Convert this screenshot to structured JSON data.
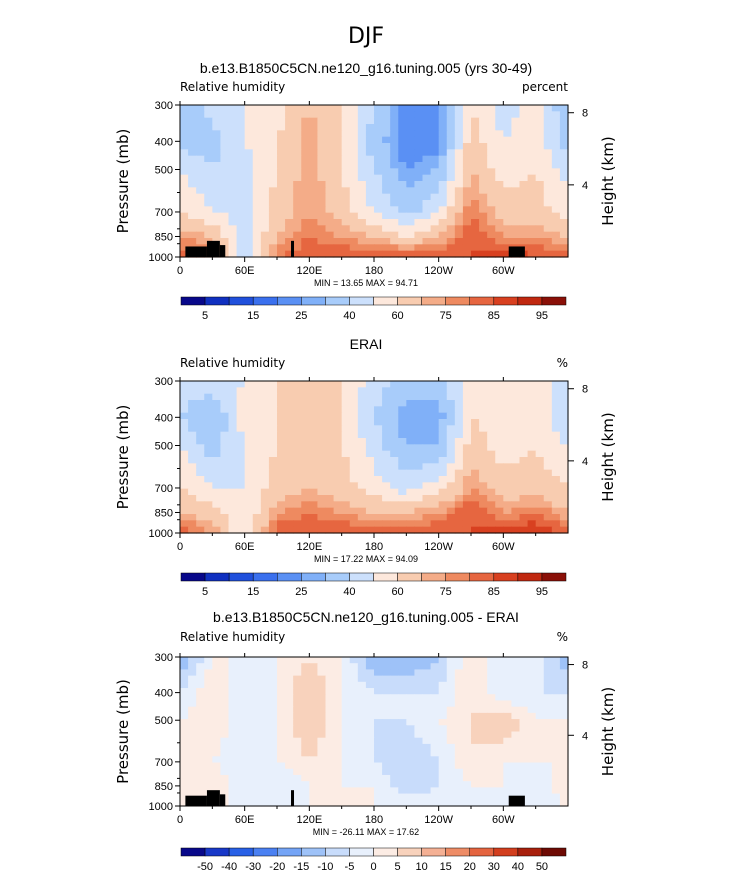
{
  "figure_title": "DJF",
  "chart_data": [
    {
      "type": "heatmap",
      "title": "b.e13.B1850C5CN.ne120_g16.tuning.005 (yrs 30-49)",
      "variable_label": "Relative humidity",
      "units_label": "percent",
      "ylabel": "Pressure (mb)",
      "ylabel_right": "Height (km)",
      "x_ticks": [
        "0",
        "60E",
        "120E",
        "180",
        "120W",
        "60W"
      ],
      "x_tick_values": [
        0,
        60,
        120,
        180,
        240,
        300
      ],
      "xlim": [
        0,
        360
      ],
      "y_ticks": [
        300,
        400,
        500,
        700,
        850,
        1000
      ],
      "ylim": [
        1000,
        300
      ],
      "y_scale": "log",
      "height_ticks_km": [
        8,
        4
      ],
      "stats": {
        "min": "13.65",
        "max": "94.71",
        "text": "MIN =   13.65   MAX =   94.71"
      },
      "colorbar_labels": [
        "5",
        "15",
        "25",
        "40",
        "60",
        "75",
        "85",
        "95"
      ],
      "colorbar_levels": [
        5,
        10,
        15,
        20,
        25,
        30,
        40,
        50,
        60,
        70,
        75,
        80,
        85,
        90,
        95
      ],
      "approx_field_rh_percent_by_pressure_and_longitude": {
        "pressure_levels": [
          300,
          400,
          500,
          700,
          850,
          1000
        ],
        "longitudes": [
          0,
          30,
          60,
          90,
          120,
          150,
          180,
          210,
          240,
          270,
          300,
          330,
          360
        ],
        "values": [
          [
            30,
            45,
            50,
            55,
            70,
            60,
            40,
            20,
            25,
            60,
            45,
            55,
            30
          ],
          [
            35,
            35,
            50,
            60,
            75,
            60,
            35,
            20,
            20,
            65,
            50,
            55,
            35
          ],
          [
            50,
            40,
            45,
            60,
            75,
            60,
            40,
            25,
            30,
            70,
            55,
            60,
            45
          ],
          [
            60,
            50,
            45,
            65,
            75,
            65,
            50,
            35,
            50,
            80,
            65,
            65,
            55
          ],
          [
            75,
            70,
            45,
            70,
            80,
            75,
            70,
            60,
            70,
            85,
            75,
            75,
            70
          ],
          [
            85,
            80,
            45,
            80,
            85,
            85,
            85,
            85,
            85,
            85,
            90,
            85,
            85
          ]
        ]
      },
      "topography_mask": "black blocks near 20-40E and 305-320E at the surface"
    },
    {
      "type": "heatmap",
      "title": "ERAI",
      "variable_label": "Relative humidity",
      "units_label": "%",
      "ylabel": "Pressure (mb)",
      "ylabel_right": "Height (km)",
      "x_ticks": [
        "0",
        "60E",
        "120E",
        "180",
        "120W",
        "60W"
      ],
      "x_tick_values": [
        0,
        60,
        120,
        180,
        240,
        300
      ],
      "xlim": [
        0,
        360
      ],
      "y_ticks": [
        300,
        400,
        500,
        700,
        850,
        1000
      ],
      "ylim": [
        1000,
        300
      ],
      "y_scale": "log",
      "height_ticks_km": [
        8,
        4
      ],
      "stats": {
        "min": "17.22",
        "max": "94.09",
        "text": "MIN =   17.22   MAX =   94.09"
      },
      "colorbar_labels": [
        "5",
        "15",
        "25",
        "40",
        "60",
        "75",
        "85",
        "95"
      ],
      "colorbar_levels": [
        5,
        10,
        15,
        20,
        25,
        30,
        40,
        50,
        60,
        70,
        75,
        80,
        85,
        90,
        95
      ],
      "approx_field_rh_percent_by_pressure_and_longitude": {
        "pressure_levels": [
          300,
          400,
          500,
          700,
          850,
          1000
        ],
        "longitudes": [
          0,
          30,
          60,
          90,
          120,
          150,
          180,
          210,
          240,
          270,
          300,
          330,
          360
        ],
        "values": [
          [
            45,
            45,
            50,
            60,
            65,
            60,
            45,
            35,
            35,
            55,
            50,
            55,
            45
          ],
          [
            40,
            30,
            55,
            60,
            65,
            60,
            40,
            25,
            25,
            60,
            55,
            60,
            40
          ],
          [
            50,
            35,
            50,
            60,
            65,
            60,
            45,
            30,
            30,
            65,
            55,
            60,
            50
          ],
          [
            60,
            50,
            50,
            65,
            70,
            65,
            55,
            45,
            55,
            75,
            65,
            65,
            60
          ],
          [
            70,
            65,
            50,
            75,
            80,
            75,
            70,
            70,
            75,
            85,
            75,
            80,
            70
          ],
          [
            85,
            75,
            50,
            85,
            85,
            85,
            85,
            85,
            85,
            85,
            90,
            90,
            85
          ]
        ]
      }
    },
    {
      "type": "heatmap",
      "title": "b.e13.B1850C5CN.ne120_g16.tuning.005 - ERAI",
      "variable_label": "Relative humidity",
      "units_label": "%",
      "ylabel": "Pressure (mb)",
      "ylabel_right": "Height (km)",
      "x_ticks": [
        "0",
        "60E",
        "120E",
        "180",
        "120W",
        "60W"
      ],
      "x_tick_values": [
        0,
        60,
        120,
        180,
        240,
        300
      ],
      "xlim": [
        0,
        360
      ],
      "y_ticks": [
        300,
        400,
        500,
        700,
        850,
        1000
      ],
      "ylim": [
        1000,
        300
      ],
      "y_scale": "log",
      "height_ticks_km": [
        8,
        4
      ],
      "stats": {
        "min": "-26.11",
        "max": "17.62",
        "text": "MIN = -26.11   MAX =   17.62"
      },
      "colorbar_labels": [
        "-50",
        "-40",
        "-30",
        "-20",
        "-15",
        "-10",
        "-5",
        "0",
        "5",
        "10",
        "15",
        "20",
        "30",
        "40",
        "50"
      ],
      "colorbar_levels": [
        -50,
        -40,
        -30,
        -20,
        -15,
        -10,
        -5,
        0,
        5,
        10,
        15,
        20,
        30,
        40,
        50
      ],
      "approx_field_rh_diff_by_pressure_and_longitude": {
        "pressure_levels": [
          300,
          400,
          500,
          700,
          850,
          1000
        ],
        "longitudes": [
          0,
          30,
          60,
          90,
          120,
          150,
          180,
          210,
          240,
          270,
          300,
          330,
          360
        ],
        "values": [
          [
            -15,
            0,
            0,
            0,
            5,
            0,
            -15,
            -15,
            -10,
            5,
            -5,
            0,
            -15
          ],
          [
            -5,
            5,
            -5,
            0,
            10,
            0,
            -5,
            -5,
            -5,
            5,
            -5,
            -5,
            -5
          ],
          [
            0,
            5,
            -5,
            0,
            10,
            0,
            -5,
            -5,
            0,
            5,
            10,
            0,
            0
          ],
          [
            0,
            0,
            -5,
            0,
            5,
            0,
            -5,
            -10,
            -5,
            5,
            0,
            0,
            0
          ],
          [
            5,
            5,
            -5,
            -5,
            0,
            0,
            0,
            -10,
            -5,
            0,
            0,
            -5,
            5
          ],
          [
            0,
            5,
            -5,
            -5,
            0,
            0,
            0,
            0,
            0,
            0,
            -5,
            -5,
            0
          ]
        ]
      },
      "topography_mask": "black blocks near 20-40E and 305-320E at the surface"
    }
  ],
  "colors": {
    "abs_palette": [
      "#08088a",
      "#1030c0",
      "#2050dc",
      "#3a70ee",
      "#5a90f4",
      "#80b0f8",
      "#a8ccfa",
      "#cce0fc",
      "#fde8dc",
      "#f8ccb0",
      "#f4ac88",
      "#ee8a60",
      "#e66640",
      "#d84020",
      "#c02810",
      "#8a1008"
    ],
    "diff_palette": [
      "#08088a",
      "#1838c8",
      "#2860e6",
      "#4a80f2",
      "#74a4f6",
      "#9ec2f8",
      "#c8dcfb",
      "#e8f0fc",
      "#fcece4",
      "#f8d2bc",
      "#f4b094",
      "#ee8c66",
      "#e46440",
      "#d23e1e",
      "#a8200c",
      "#6e0a04"
    ],
    "mask": "#000000"
  }
}
